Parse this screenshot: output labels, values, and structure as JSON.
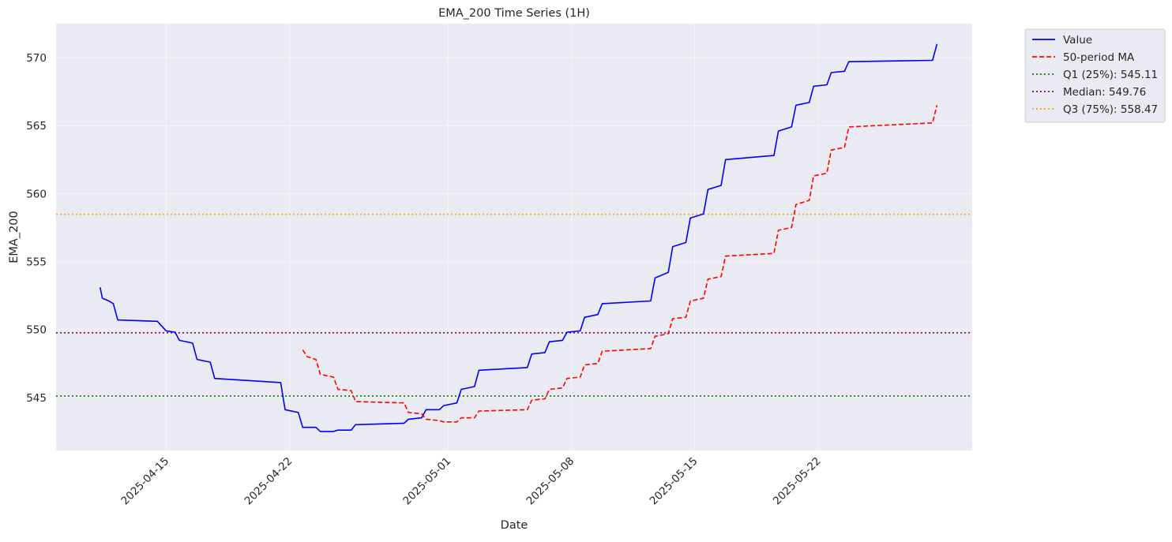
{
  "chart_data": {
    "type": "line",
    "title": "EMA_200 Time Series (1H)",
    "xlabel": "Date",
    "ylabel": "EMA_200",
    "xlim": [
      "2025-04-08T18:00",
      "2025-05-30T18:00"
    ],
    "ylim": [
      541.1,
      572.5
    ],
    "x_ticks": [
      "2025-04-15",
      "2025-04-22",
      "2025-05-01",
      "2025-05-08",
      "2025-05-15",
      "2025-05-22"
    ],
    "y_ticks": [
      545,
      550,
      555,
      560,
      565,
      570
    ],
    "grid": true,
    "legend_position": "outside-top-right",
    "series": [
      {
        "name": "Value",
        "style": "solid",
        "color": "#0000ff",
        "points": [
          [
            "2025-04-11T06:00",
            553.1
          ],
          [
            "2025-04-11T09:00",
            552.3
          ],
          [
            "2025-04-11T18:00",
            552.1
          ],
          [
            "2025-04-12T00:00",
            551.9
          ],
          [
            "2025-04-12T06:00",
            550.7
          ],
          [
            "2025-04-14T12:00",
            550.6
          ],
          [
            "2025-04-15T00:00",
            549.9
          ],
          [
            "2025-04-15T12:00",
            549.8
          ],
          [
            "2025-04-15T18:00",
            549.2
          ],
          [
            "2025-04-16T12:00",
            549.0
          ],
          [
            "2025-04-16T18:00",
            547.8
          ],
          [
            "2025-04-17T12:00",
            547.6
          ],
          [
            "2025-04-17T18:00",
            546.4
          ],
          [
            "2025-04-21T12:00",
            546.1
          ],
          [
            "2025-04-21T18:00",
            544.1
          ],
          [
            "2025-04-22T12:00",
            543.9
          ],
          [
            "2025-04-22T18:00",
            542.8
          ],
          [
            "2025-04-23T12:00",
            542.8
          ],
          [
            "2025-04-23T18:00",
            542.5
          ],
          [
            "2025-04-24T12:00",
            542.5
          ],
          [
            "2025-04-24T18:00",
            542.6
          ],
          [
            "2025-04-25T12:00",
            542.6
          ],
          [
            "2025-04-25T18:00",
            543.0
          ],
          [
            "2025-04-28T12:00",
            543.1
          ],
          [
            "2025-04-28T18:00",
            543.4
          ],
          [
            "2025-04-29T12:00",
            543.5
          ],
          [
            "2025-04-29T18:00",
            544.1
          ],
          [
            "2025-04-30T12:00",
            544.1
          ],
          [
            "2025-04-30T18:00",
            544.4
          ],
          [
            "2025-05-01T12:00",
            544.6
          ],
          [
            "2025-05-01T18:00",
            545.6
          ],
          [
            "2025-05-02T12:00",
            545.8
          ],
          [
            "2025-05-02T18:00",
            547.0
          ],
          [
            "2025-05-05T12:00",
            547.2
          ],
          [
            "2025-05-05T18:00",
            548.2
          ],
          [
            "2025-05-06T12:00",
            548.3
          ],
          [
            "2025-05-06T18:00",
            549.1
          ],
          [
            "2025-05-07T12:00",
            549.2
          ],
          [
            "2025-05-07T18:00",
            549.8
          ],
          [
            "2025-05-08T12:00",
            549.9
          ],
          [
            "2025-05-08T18:00",
            550.9
          ],
          [
            "2025-05-09T12:00",
            551.1
          ],
          [
            "2025-05-09T18:00",
            551.9
          ],
          [
            "2025-05-12T12:00",
            552.1
          ],
          [
            "2025-05-12T18:00",
            553.8
          ],
          [
            "2025-05-13T12:00",
            554.2
          ],
          [
            "2025-05-13T18:00",
            556.1
          ],
          [
            "2025-05-14T12:00",
            556.4
          ],
          [
            "2025-05-14T18:00",
            558.2
          ],
          [
            "2025-05-15T12:00",
            558.5
          ],
          [
            "2025-05-15T18:00",
            560.3
          ],
          [
            "2025-05-16T12:00",
            560.6
          ],
          [
            "2025-05-16T18:00",
            562.5
          ],
          [
            "2025-05-19T12:00",
            562.8
          ],
          [
            "2025-05-19T18:00",
            564.6
          ],
          [
            "2025-05-20T12:00",
            564.9
          ],
          [
            "2025-05-20T18:00",
            566.5
          ],
          [
            "2025-05-21T12:00",
            566.7
          ],
          [
            "2025-05-21T18:00",
            567.9
          ],
          [
            "2025-05-22T12:00",
            568.0
          ],
          [
            "2025-05-22T18:00",
            568.9
          ],
          [
            "2025-05-23T12:00",
            569.0
          ],
          [
            "2025-05-23T18:00",
            569.7
          ],
          [
            "2025-05-28T12:00",
            569.8
          ],
          [
            "2025-05-28T18:00",
            571.0
          ]
        ]
      },
      {
        "name": "50-period MA",
        "style": "dashed",
        "color": "#ff0000",
        "points": [
          [
            "2025-04-22T18:00",
            548.5
          ],
          [
            "2025-04-23T00:00",
            548.0
          ],
          [
            "2025-04-23T12:00",
            547.8
          ],
          [
            "2025-04-23T18:00",
            546.7
          ],
          [
            "2025-04-24T12:00",
            546.5
          ],
          [
            "2025-04-24T18:00",
            545.6
          ],
          [
            "2025-04-25T12:00",
            545.5
          ],
          [
            "2025-04-25T18:00",
            544.7
          ],
          [
            "2025-04-28T12:00",
            544.6
          ],
          [
            "2025-04-28T18:00",
            543.9
          ],
          [
            "2025-04-29T12:00",
            543.8
          ],
          [
            "2025-04-29T18:00",
            543.4
          ],
          [
            "2025-04-30T12:00",
            543.3
          ],
          [
            "2025-04-30T18:00",
            543.2
          ],
          [
            "2025-05-01T12:00",
            543.2
          ],
          [
            "2025-05-01T18:00",
            543.5
          ],
          [
            "2025-05-02T12:00",
            543.5
          ],
          [
            "2025-05-02T18:00",
            544.0
          ],
          [
            "2025-05-05T12:00",
            544.1
          ],
          [
            "2025-05-05T18:00",
            544.8
          ],
          [
            "2025-05-06T12:00",
            544.9
          ],
          [
            "2025-05-06T18:00",
            545.6
          ],
          [
            "2025-05-07T12:00",
            545.7
          ],
          [
            "2025-05-07T18:00",
            546.4
          ],
          [
            "2025-05-08T12:00",
            546.5
          ],
          [
            "2025-05-08T18:00",
            547.4
          ],
          [
            "2025-05-09T12:00",
            547.5
          ],
          [
            "2025-05-09T18:00",
            548.4
          ],
          [
            "2025-05-12T12:00",
            548.6
          ],
          [
            "2025-05-12T18:00",
            549.5
          ],
          [
            "2025-05-13T12:00",
            549.7
          ],
          [
            "2025-05-13T18:00",
            550.8
          ],
          [
            "2025-05-14T12:00",
            550.9
          ],
          [
            "2025-05-14T18:00",
            552.1
          ],
          [
            "2025-05-15T12:00",
            552.3
          ],
          [
            "2025-05-15T18:00",
            553.7
          ],
          [
            "2025-05-16T12:00",
            553.9
          ],
          [
            "2025-05-16T18:00",
            555.4
          ],
          [
            "2025-05-19T12:00",
            555.6
          ],
          [
            "2025-05-19T18:00",
            557.3
          ],
          [
            "2025-05-20T12:00",
            557.5
          ],
          [
            "2025-05-20T18:00",
            559.2
          ],
          [
            "2025-05-21T12:00",
            559.5
          ],
          [
            "2025-05-21T18:00",
            561.3
          ],
          [
            "2025-05-22T12:00",
            561.5
          ],
          [
            "2025-05-22T18:00",
            563.2
          ],
          [
            "2025-05-23T12:00",
            563.4
          ],
          [
            "2025-05-23T18:00",
            564.9
          ],
          [
            "2025-05-28T12:00",
            565.2
          ],
          [
            "2025-05-28T18:00",
            566.5
          ]
        ]
      }
    ],
    "hlines": [
      {
        "name": "Q1 (25%): 545.11",
        "value": 545.11,
        "color": "#008000",
        "style": "dotted"
      },
      {
        "name": "Median: 549.76",
        "value": 549.76,
        "color": "#800080",
        "style": "dotted"
      },
      {
        "name": "Q3 (75%): 558.47",
        "value": 558.47,
        "color": "#ffa500",
        "style": "dotted"
      }
    ]
  }
}
